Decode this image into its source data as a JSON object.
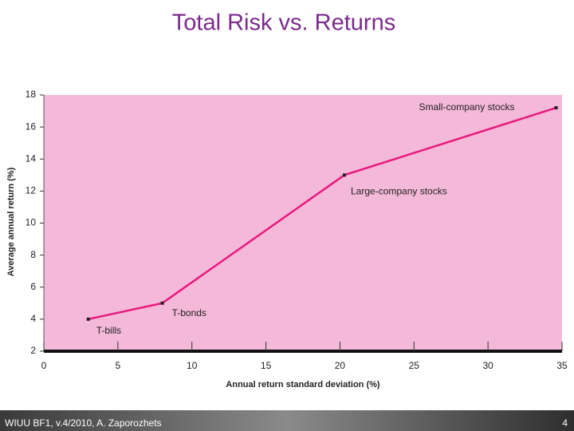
{
  "chart_data": {
    "type": "line",
    "title": "Total Risk vs. Returns",
    "x_label": "Annual return standard deviation (%)",
    "y_label": "Average annual return (%)",
    "x": [
      3.0,
      8.0,
      20.3,
      34.6
    ],
    "series": [
      {
        "color": "#e8197f",
        "values": [
          4.0,
          5.0,
          13.0,
          17.2
        ]
      }
    ],
    "point_labels": [
      "T-bills",
      "T-bonds",
      "Large-company stocks",
      "Small-company stocks"
    ],
    "xlim": [
      0,
      35
    ],
    "xticks": [
      0,
      5,
      10,
      15,
      20,
      25,
      30,
      35
    ],
    "ylim": [
      2,
      18
    ],
    "yticks": [
      2,
      4,
      6,
      8,
      10,
      12,
      14,
      16,
      18
    ],
    "plot_background": "#f4b8d8"
  },
  "footer": {
    "text": "WIUU BF1, v.4/2010, A. Zaporozhets",
    "page": "4"
  }
}
